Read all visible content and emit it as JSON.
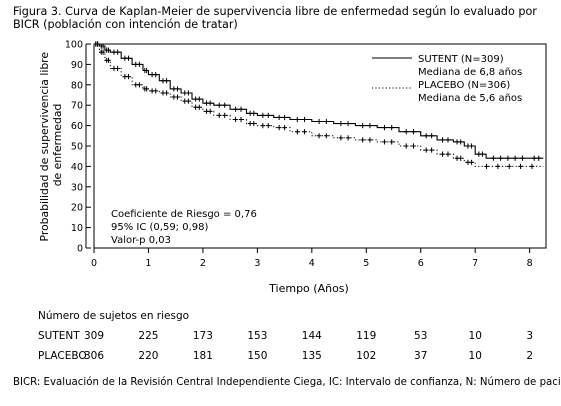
{
  "figure": {
    "title": "Figura 3. Curva de Kaplan-Meier de supervivencia libre de enfermedad según lo evaluado por BICR (población con intención de tratar)"
  },
  "chart_data": {
    "type": "line",
    "xlabel": "Tiempo (Años)",
    "ylabel": "Probabilidad de supervivencia libre de enfermedad",
    "xlim": [
      0,
      8.3
    ],
    "ylim": [
      0,
      100
    ],
    "xticks": [
      "0",
      "1",
      "2",
      "3",
      "4",
      "5",
      "6",
      "7",
      "8"
    ],
    "yticks": [
      "0",
      "10",
      "20",
      "30",
      "40",
      "50",
      "60",
      "70",
      "80",
      "90",
      "100"
    ],
    "legend_position": "top-right",
    "legend": [
      {
        "label": "SUTENT (N=309)",
        "sublabel": "Mediana de 6,8 años",
        "style": "solid"
      },
      {
        "label": "PLACEBO (N=306)",
        "sublabel": "Mediana de 5,6 años",
        "style": "dotted"
      }
    ],
    "annotation": [
      "Coeficiente de Riesgo = 0,76",
      "95% IC (0,59; 0,98)",
      "Valor-p 0,03"
    ],
    "series": [
      {
        "name": "SUTENT (N=309)",
        "style": "solid",
        "x": [
          0,
          0.1,
          0.2,
          0.3,
          0.5,
          0.7,
          0.9,
          1.0,
          1.2,
          1.4,
          1.6,
          1.8,
          2.0,
          2.2,
          2.5,
          2.8,
          3.0,
          3.3,
          3.6,
          4.0,
          4.4,
          4.8,
          5.2,
          5.6,
          6.0,
          6.3,
          6.6,
          6.8,
          7.0,
          7.2,
          8.0,
          8.25
        ],
        "y": [
          100,
          99,
          97,
          96,
          93,
          90,
          87,
          85,
          82,
          78,
          76,
          73,
          71,
          70,
          68,
          66,
          65,
          64,
          63,
          62,
          61,
          60,
          59,
          57,
          55,
          53,
          52,
          50,
          46,
          44,
          44,
          44
        ]
      },
      {
        "name": "PLACEBO (N=306)",
        "style": "dotted",
        "x": [
          0,
          0.1,
          0.2,
          0.3,
          0.5,
          0.7,
          0.9,
          1.0,
          1.2,
          1.4,
          1.6,
          1.8,
          2.0,
          2.2,
          2.5,
          2.8,
          3.0,
          3.3,
          3.6,
          4.0,
          4.4,
          4.8,
          5.2,
          5.6,
          6.0,
          6.3,
          6.6,
          6.8,
          7.0,
          8.25
        ],
        "y": [
          100,
          96,
          92,
          88,
          84,
          80,
          78,
          77,
          76,
          74,
          72,
          69,
          67,
          65,
          63,
          61,
          60,
          59,
          57,
          55,
          54,
          53,
          52,
          50,
          48,
          46,
          44,
          42,
          40,
          40
        ]
      }
    ]
  },
  "risk_table": {
    "title": "Número de sujetos en riesgo",
    "rows": [
      {
        "name": "SUTENT",
        "values": [
          "309",
          "225",
          "173",
          "153",
          "144",
          "119",
          "53",
          "10",
          "3"
        ]
      },
      {
        "name": "PLACEBO",
        "values": [
          "306",
          "220",
          "181",
          "150",
          "135",
          "102",
          "37",
          "10",
          "2"
        ]
      }
    ]
  },
  "footnote": "BICR: Evaluación de la Revisión Central Independiente Ciega, IC: Intervalo de confianza, N: Número de pacientes"
}
